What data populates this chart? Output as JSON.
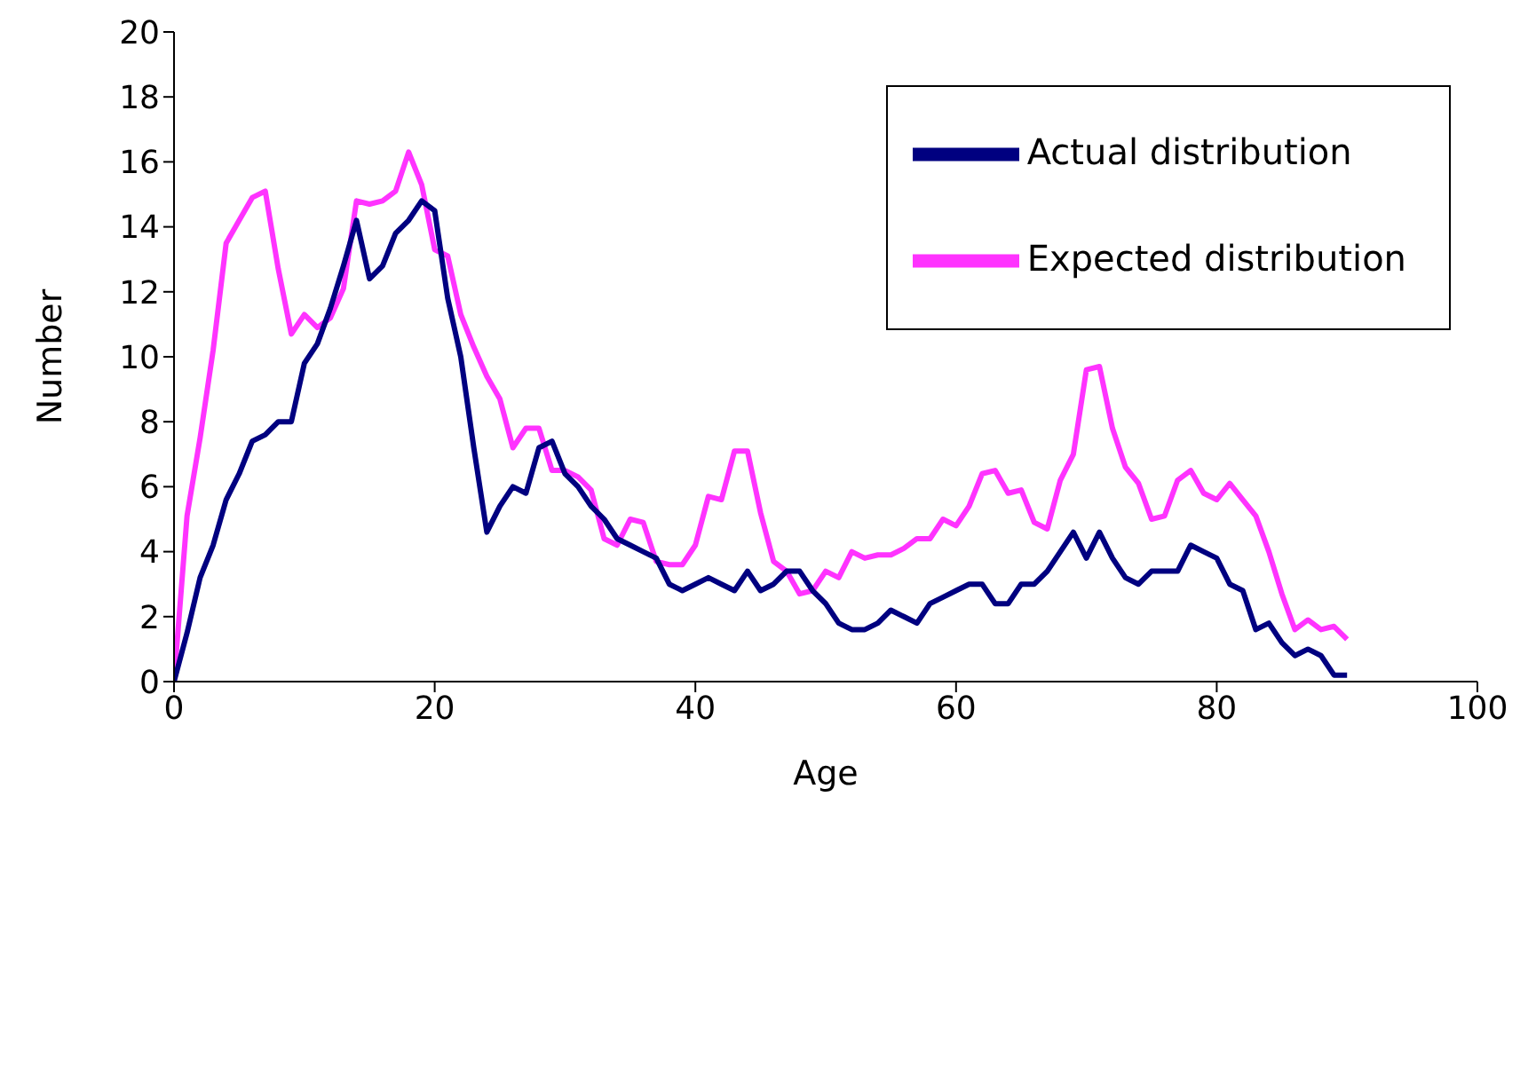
{
  "chart_data": {
    "type": "line",
    "xlabel": "Age",
    "ylabel": "Number",
    "x": [
      0,
      1,
      2,
      3,
      4,
      5,
      6,
      7,
      8,
      9,
      10,
      11,
      12,
      13,
      14,
      15,
      16,
      17,
      18,
      19,
      20,
      21,
      22,
      23,
      24,
      25,
      26,
      27,
      28,
      29,
      30,
      31,
      32,
      33,
      34,
      35,
      36,
      37,
      38,
      39,
      40,
      41,
      42,
      43,
      44,
      45,
      46,
      47,
      48,
      49,
      50,
      51,
      52,
      53,
      54,
      55,
      56,
      57,
      58,
      59,
      60,
      61,
      62,
      63,
      64,
      65,
      66,
      67,
      68,
      69,
      70,
      71,
      72,
      73,
      74,
      75,
      76,
      77,
      78,
      79,
      80,
      81,
      82,
      83,
      84,
      85,
      86,
      87,
      88,
      89,
      90
    ],
    "series": [
      {
        "name": "Expected distribution",
        "color": "#ff33ff",
        "values": [
          0,
          5.1,
          7.5,
          10.2,
          13.5,
          14.2,
          14.9,
          15.1,
          12.7,
          10.7,
          11.3,
          10.9,
          11.2,
          12.1,
          14.8,
          14.7,
          14.8,
          15.1,
          16.3,
          15.3,
          13.3,
          13.1,
          11.3,
          10.3,
          9.4,
          8.7,
          7.2,
          7.8,
          7.8,
          6.5,
          6.5,
          6.3,
          5.9,
          4.4,
          4.2,
          5.0,
          4.9,
          3.7,
          3.6,
          3.6,
          4.2,
          5.7,
          5.6,
          7.1,
          7.1,
          5.2,
          3.7,
          3.4,
          2.7,
          2.8,
          3.4,
          3.2,
          4.0,
          3.8,
          3.9,
          3.9,
          4.1,
          4.4,
          4.4,
          5.0,
          4.8,
          5.4,
          6.4,
          6.5,
          5.8,
          5.9,
          4.9,
          4.7,
          6.2,
          7.0,
          9.6,
          9.7,
          7.8,
          6.6,
          6.1,
          5.0,
          5.1,
          6.2,
          6.5,
          5.8,
          5.6,
          6.1,
          5.6,
          5.1,
          4.0,
          2.7,
          1.6,
          1.9,
          1.6,
          1.7,
          1.3
        ]
      },
      {
        "name": "Actual distribution",
        "color": "#000080",
        "values": [
          0,
          1.5,
          3.2,
          4.2,
          5.6,
          6.4,
          7.4,
          7.6,
          8.0,
          8.0,
          9.8,
          10.4,
          11.5,
          12.8,
          14.2,
          12.4,
          12.8,
          13.8,
          14.2,
          14.8,
          14.5,
          11.8,
          10.0,
          7.2,
          4.6,
          5.4,
          6.0,
          5.8,
          7.2,
          7.4,
          6.4,
          6.0,
          5.4,
          5.0,
          4.4,
          4.2,
          4.0,
          3.8,
          3.0,
          2.8,
          3.0,
          3.2,
          3.0,
          2.8,
          3.4,
          2.8,
          3.0,
          3.4,
          3.4,
          2.8,
          2.4,
          1.8,
          1.6,
          1.6,
          1.8,
          2.2,
          2.0,
          1.8,
          2.4,
          2.6,
          2.8,
          3.0,
          3.0,
          2.4,
          2.4,
          3.0,
          3.0,
          3.4,
          4.0,
          4.6,
          3.8,
          4.6,
          3.8,
          3.2,
          3.0,
          3.4,
          3.4,
          3.4,
          4.2,
          4.0,
          3.8,
          3.0,
          2.8,
          1.6,
          1.8,
          1.2,
          0.8,
          1.0,
          0.8,
          0.2,
          0.2
        ]
      }
    ],
    "xlim": [
      0,
      100
    ],
    "xticks": [
      0,
      20,
      40,
      60,
      80,
      100
    ],
    "ylim": [
      0,
      20
    ],
    "yticks": [
      0,
      2,
      4,
      6,
      8,
      10,
      12,
      14,
      16,
      18,
      20
    ],
    "grid": false,
    "legend": "top right",
    "marker": "none",
    "line_style": "solid"
  }
}
